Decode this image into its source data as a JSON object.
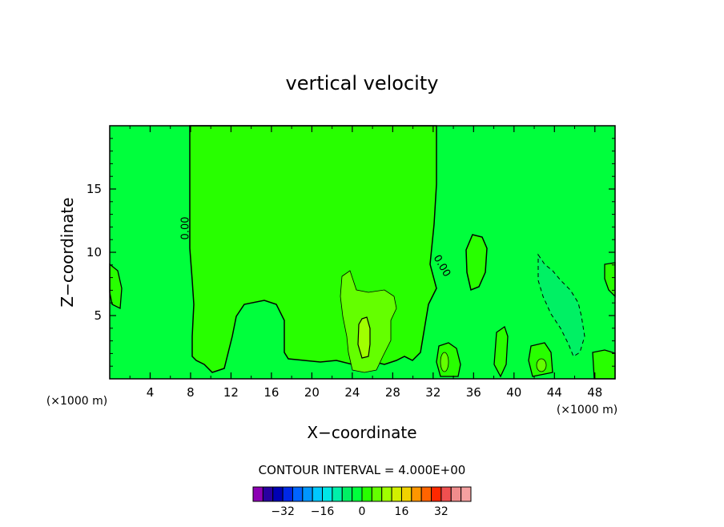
{
  "chart_data": {
    "type": "heatmap",
    "title": "vertical velocity",
    "xlabel": "X−coordinate",
    "ylabel": "Z−coordinate",
    "x_unit_left": "(×1000 m)",
    "x_unit_right": "(×1000 m)",
    "xlim": [
      0,
      50
    ],
    "ylim": [
      0,
      20
    ],
    "xticks": [
      4,
      8,
      12,
      16,
      20,
      24,
      28,
      32,
      36,
      40,
      44,
      48
    ],
    "xtick_labels": [
      "4",
      "8",
      "12",
      "16",
      "20",
      "24",
      "28",
      "32",
      "36",
      "40",
      "44",
      "48"
    ],
    "yticks": [
      5,
      10,
      15
    ],
    "ytick_labels": [
      "5",
      "10",
      "15"
    ],
    "contour_interval_text": "CONTOUR INTERVAL = 4.000E+00",
    "contour_interval": 4,
    "contour_labels": [
      {
        "text": "0.00",
        "x": 7.8,
        "y": 11.9,
        "angle": -90
      },
      {
        "text": "0.00",
        "x": 32.6,
        "y": 8.8,
        "angle": 60
      }
    ],
    "colorbar": {
      "levels": [
        -40,
        -36,
        -32,
        -28,
        -24,
        -20,
        -16,
        -12,
        -8,
        -4,
        0,
        4,
        8,
        12,
        16,
        20,
        24,
        28,
        32,
        36,
        40
      ],
      "colors": [
        "#8c00b4",
        "#2800a0",
        "#0000b4",
        "#0028e6",
        "#0064ff",
        "#0096ff",
        "#00c8ff",
        "#00e6e6",
        "#00f0aa",
        "#00f064",
        "#00ff3c",
        "#28ff00",
        "#64ff00",
        "#a0ff00",
        "#d2f000",
        "#f0d200",
        "#ff9600",
        "#ff6400",
        "#ff2800",
        "#f05050",
        "#f08c8c",
        "#f5a0a0"
      ],
      "tick_labels": [
        "−32",
        "−16",
        "0",
        "16",
        "32"
      ],
      "tick_values": [
        -32,
        -16,
        0,
        16,
        32
      ]
    },
    "background_value_range": [
      -4,
      0
    ],
    "regions": [
      {
        "name": "zero-to-plus4-region",
        "range": [
          0,
          4
        ],
        "color": "#28ff00"
      },
      {
        "name": "plus4-to-plus8-region",
        "range": [
          4,
          8
        ],
        "color": "#64ff00"
      },
      {
        "name": "plus8-to-plus12-region",
        "range": [
          8,
          12
        ],
        "color": "#a0ff00"
      },
      {
        "name": "minus8-to-minus4-region",
        "range": [
          -8,
          -4
        ],
        "color": "#00f064"
      }
    ]
  }
}
